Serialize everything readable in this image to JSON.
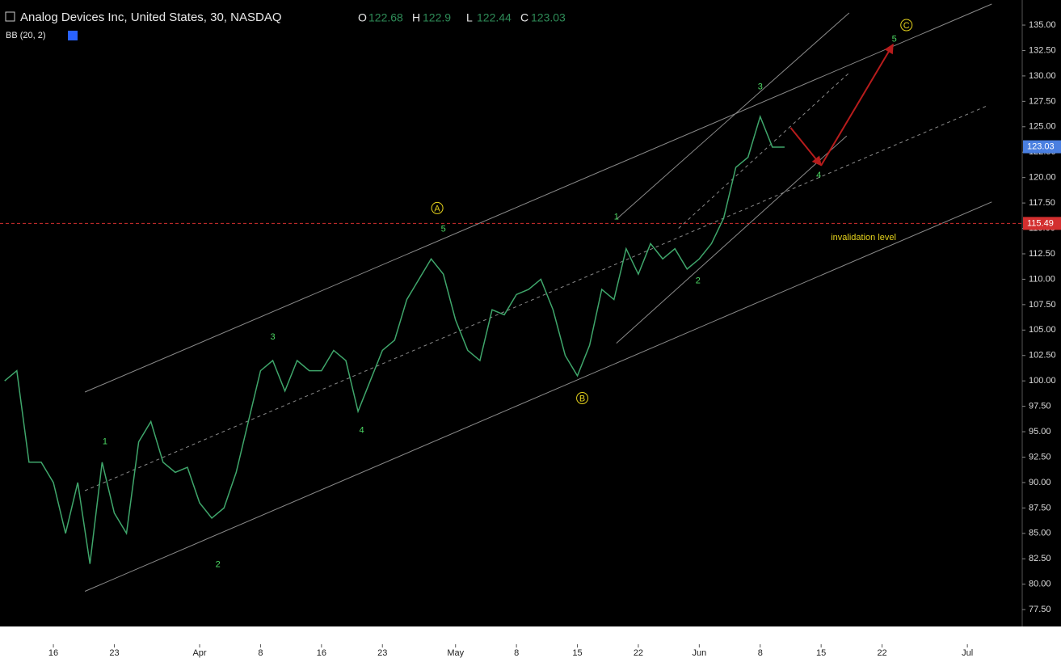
{
  "chart_data": {
    "type": "line",
    "title": "Analog Devices Inc, United States, 30, NASDAQ",
    "indicator": "BB (20, 2)",
    "ohlc": [
      {
        "label": "O",
        "value": 122.68
      },
      {
        "label": "H",
        "value": 122.9
      },
      {
        "label": "L",
        "value": 122.44
      },
      {
        "label": "C",
        "value": 123.03
      }
    ],
    "x": [
      -4,
      -3,
      -2,
      -1,
      0,
      1,
      2,
      3,
      4,
      5,
      6,
      7,
      8,
      9,
      10,
      11,
      12,
      13,
      14,
      15,
      16,
      17,
      18,
      19,
      20,
      21,
      22,
      23,
      24,
      25,
      26,
      27,
      28,
      29,
      30,
      31,
      32,
      33,
      34,
      35,
      36,
      37,
      38,
      39,
      40,
      41,
      42,
      43,
      44,
      45,
      46,
      47,
      48,
      49,
      50,
      51,
      52,
      53,
      54,
      55,
      56,
      57,
      58,
      59,
      60
    ],
    "series": [
      {
        "color": "#3fa66b",
        "values": [
          100,
          101,
          92,
          92,
          90,
          85,
          90,
          82,
          92,
          87,
          85,
          94,
          96,
          92,
          91,
          91.5,
          88,
          86.5,
          87.5,
          91,
          96,
          101,
          102,
          99,
          102,
          101,
          101,
          103,
          102,
          97,
          100,
          103,
          104,
          108,
          110,
          112,
          110.5,
          106,
          103,
          102,
          107,
          106.5,
          108.5,
          109,
          110,
          107,
          102.5,
          100.5,
          103.5,
          109,
          108,
          113,
          110.5,
          113.5,
          112,
          113,
          111,
          112,
          113.5,
          116,
          121,
          122,
          126,
          123,
          123
        ]
      }
    ],
    "xlim": [
      -4.38,
      79.5
    ],
    "xticks": [
      {
        "value": 0,
        "label": "16"
      },
      {
        "value": 5,
        "label": "23"
      },
      {
        "value": 12,
        "label": "Apr"
      },
      {
        "value": 17,
        "label": "8"
      },
      {
        "value": 22,
        "label": "16"
      },
      {
        "value": 27,
        "label": "23"
      },
      {
        "value": 33,
        "label": "May"
      },
      {
        "value": 38,
        "label": "8"
      },
      {
        "value": 43,
        "label": "15"
      },
      {
        "value": 48,
        "label": "22"
      },
      {
        "value": 53,
        "label": "Jun"
      },
      {
        "value": 58,
        "label": "8"
      },
      {
        "value": 63,
        "label": "15"
      },
      {
        "value": 68,
        "label": "22"
      },
      {
        "value": 75,
        "label": "Jul"
      }
    ],
    "ylim": [
      76.0,
      137.07
    ],
    "yticks": [
      {
        "value": 77.5,
        "label": "77.50"
      },
      {
        "value": 80,
        "label": "80.00"
      },
      {
        "value": 82.5,
        "label": "82.50"
      },
      {
        "value": 85,
        "label": "85.00"
      },
      {
        "value": 87.5,
        "label": "87.50"
      },
      {
        "value": 90,
        "label": "90.00"
      },
      {
        "value": 92.5,
        "label": "92.50"
      },
      {
        "value": 95,
        "label": "95.00"
      },
      {
        "value": 97.5,
        "label": "97.50"
      },
      {
        "value": 100,
        "label": "100.00"
      },
      {
        "value": 102.5,
        "label": "102.50"
      },
      {
        "value": 105,
        "label": "105.00"
      },
      {
        "value": 107.5,
        "label": "107.50"
      },
      {
        "value": 110,
        "label": "110.00"
      },
      {
        "value": 112.5,
        "label": "112.50"
      },
      {
        "value": 115,
        "label": "115.00"
      },
      {
        "value": 117.5,
        "label": "117.50"
      },
      {
        "value": 120,
        "label": "120.00"
      },
      {
        "value": 122.5,
        "label": "122.50"
      },
      {
        "value": 125,
        "label": "125.00"
      },
      {
        "value": 127.5,
        "label": "127.50"
      },
      {
        "value": 130,
        "label": "130.00"
      },
      {
        "value": 132.5,
        "label": "132.50"
      },
      {
        "value": 135,
        "label": "135.00"
      }
    ],
    "last_price": {
      "value": 123.03,
      "color": "#4a7fe0"
    },
    "invalidation": {
      "value": 115.49,
      "text": "invalidation level",
      "color": "#d32f2f",
      "text_x": 63.8,
      "text_y": 114.1
    },
    "trend_lines": [
      {
        "start": [
          2.59,
          98.9
        ],
        "end": [
          77.0,
          137.07
        ],
        "dashed": false,
        "color": "#8a8a8a"
      },
      {
        "start": [
          2.59,
          79.3
        ],
        "end": [
          77.0,
          117.6
        ],
        "dashed": false,
        "color": "#8a8a8a"
      },
      {
        "start": [
          2.59,
          89.2
        ],
        "end": [
          76.7,
          127.1
        ],
        "dashed": true,
        "color": "#8a8a8a"
      },
      {
        "start": [
          46.2,
          115.9
        ],
        "end": [
          65.3,
          136.2
        ],
        "dashed": false,
        "color": "#8a8a8a"
      },
      {
        "start": [
          46.2,
          103.7
        ],
        "end": [
          65.1,
          124.1
        ],
        "dashed": false,
        "color": "#8a8a8a"
      },
      {
        "start": [
          51.3,
          115.0
        ],
        "end": [
          65.3,
          130.3
        ],
        "dashed": true,
        "color": "#8a8a8a"
      },
      {
        "start": [
          60.5,
          124.9
        ],
        "end": [
          63.0,
          121.2
        ],
        "dashed": false,
        "color": "#b71c1c",
        "arrow": true
      },
      {
        "start": [
          63.0,
          121.2
        ],
        "end": [
          68.9,
          133.1
        ],
        "dashed": false,
        "color": "#b71c1c",
        "arrow": true
      }
    ],
    "wave_labels": [
      {
        "text": "1",
        "x": 4.24,
        "y": 94.1,
        "circled": false
      },
      {
        "text": "2",
        "x": 13.5,
        "y": 82.0,
        "circled": false
      },
      {
        "text": "3",
        "x": 18.0,
        "y": 104.4,
        "circled": false
      },
      {
        "text": "4",
        "x": 25.3,
        "y": 95.2,
        "circled": false
      },
      {
        "text": "5",
        "x": 32.0,
        "y": 115.0,
        "circled": false
      },
      {
        "text": "A",
        "x": 31.5,
        "y": 117.0,
        "circled": true
      },
      {
        "text": "B",
        "x": 43.4,
        "y": 98.3,
        "circled": true
      },
      {
        "text": "1",
        "x": 46.2,
        "y": 116.2,
        "circled": false
      },
      {
        "text": "2",
        "x": 52.9,
        "y": 109.9,
        "circled": false
      },
      {
        "text": "3",
        "x": 58.0,
        "y": 129.0,
        "circled": false
      },
      {
        "text": "4",
        "x": 62.8,
        "y": 120.3,
        "circled": false
      },
      {
        "text": "5",
        "x": 69.0,
        "y": 133.7,
        "circled": false
      },
      {
        "text": "C",
        "x": 70.0,
        "y": 135.0,
        "circled": true
      }
    ]
  }
}
